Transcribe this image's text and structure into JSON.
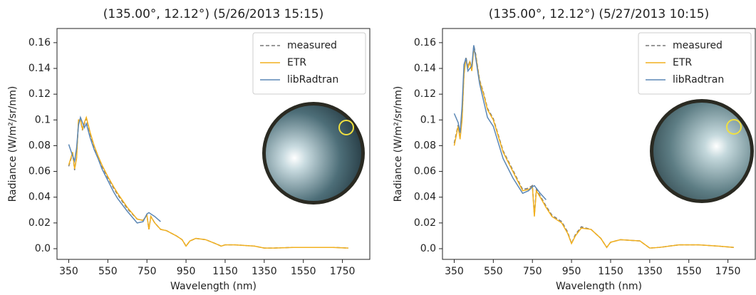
{
  "chart_data": [
    {
      "type": "line",
      "title": "(135.00°, 12.12°) (5/26/2013 15:15)",
      "x_label": "Wavelength (nm)",
      "y_label": "Radiance (W/m²/sr/nm)",
      "xlim": [
        290,
        1890
      ],
      "ylim": [
        -0.0083,
        0.171
      ],
      "xticks": [
        350,
        550,
        750,
        950,
        1150,
        1350,
        1550,
        1750
      ],
      "yticks": [
        {
          "value": 0,
          "label": "0.0"
        },
        0.02,
        0.04,
        0.06,
        0.08,
        0.1,
        0.12,
        0.14,
        0.16
      ],
      "legend": "upper right",
      "x": [
        350,
        370,
        380,
        390,
        400,
        410,
        420,
        430,
        440,
        460,
        480,
        500,
        520,
        550,
        580,
        600,
        650,
        700,
        730,
        750,
        760,
        770,
        790,
        820,
        850,
        900,
        930,
        950,
        970,
        1000,
        1050,
        1100,
        1130,
        1150,
        1200,
        1300,
        1350,
        1400,
        1500,
        1600,
        1700,
        1780
      ],
      "series": [
        {
          "name": "measured",
          "color": "#777777",
          "dashed": true,
          "values": [
            0.064,
            0.074,
            0.061,
            0.071,
            0.099,
            0.1,
            0.092,
            0.097,
            0.101,
            0.089,
            0.079,
            0.071,
            0.064,
            0.055,
            0.047,
            0.042,
            0.031,
            0.023,
            0.022,
            0.026,
            0.015,
            0.025,
            0.02,
            0.015,
            0.014,
            0.01,
            0.007,
            0.002,
            0.006,
            0.008,
            0.007,
            0.004,
            0.002,
            0.003,
            0.003,
            0.002,
            0.0005,
            0.0005,
            0.001,
            0.001,
            0.001,
            0.0005
          ]
        },
        {
          "name": "ETR",
          "color": "#f2b01e",
          "dashed": false,
          "values": [
            0.065,
            0.075,
            0.062,
            0.07,
            0.1,
            0.1,
            0.093,
            0.098,
            0.102,
            0.09,
            0.08,
            0.072,
            0.065,
            0.056,
            0.048,
            0.043,
            0.032,
            0.023,
            0.022,
            0.026,
            0.015,
            0.025,
            0.02,
            0.015,
            0.014,
            0.01,
            0.007,
            0.002,
            0.006,
            0.008,
            0.007,
            0.004,
            0.002,
            0.003,
            0.003,
            0.002,
            0.0005,
            0.0005,
            0.001,
            0.001,
            0.001,
            0.0005
          ]
        },
        {
          "name": "libRadtran",
          "color": "#5b87b5",
          "dashed": false,
          "values": [
            0.081,
            0.072,
            0.068,
            0.078,
            0.096,
            0.102,
            0.098,
            0.094,
            0.097,
            0.086,
            0.077,
            0.07,
            0.062,
            0.053,
            0.044,
            0.039,
            0.029,
            0.02,
            0.021,
            0.027,
            0.028,
            0.027,
            0.025,
            0.021,
            null,
            null,
            null,
            null,
            null,
            null,
            null,
            null,
            null,
            null,
            null,
            null,
            null,
            null,
            null,
            null,
            null,
            null
          ]
        }
      ]
    },
    {
      "type": "line",
      "title": "(135.00°, 12.12°) (5/27/2013 10:15)",
      "x_label": "Wavelength (nm)",
      "y_label": "Radiance (W/m²/sr/nm)",
      "xlim": [
        290,
        1890
      ],
      "ylim": [
        -0.0083,
        0.171
      ],
      "xticks": [
        350,
        550,
        750,
        950,
        1150,
        1350,
        1550,
        1750
      ],
      "yticks": [
        {
          "value": 0,
          "label": "0.0"
        },
        0.02,
        0.04,
        0.06,
        0.08,
        0.1,
        0.12,
        0.14,
        0.16
      ],
      "legend": "upper right",
      "x": [
        350,
        370,
        380,
        390,
        400,
        410,
        420,
        430,
        440,
        450,
        460,
        480,
        500,
        520,
        550,
        580,
        600,
        650,
        700,
        730,
        750,
        760,
        770,
        790,
        820,
        850,
        900,
        930,
        950,
        970,
        1000,
        1050,
        1100,
        1130,
        1150,
        1200,
        1300,
        1350,
        1400,
        1500,
        1600,
        1700,
        1780
      ],
      "series": [
        {
          "name": "measured",
          "color": "#777777",
          "dashed": true,
          "values": [
            0.082,
            0.096,
            0.086,
            0.101,
            0.136,
            0.149,
            0.141,
            0.146,
            0.139,
            0.158,
            0.151,
            0.131,
            0.121,
            0.109,
            0.101,
            0.086,
            0.076,
            0.061,
            0.046,
            0.047,
            0.049,
            0.026,
            0.046,
            0.041,
            0.033,
            0.026,
            0.021,
            0.013,
            0.004,
            0.011,
            0.017,
            0.015,
            0.008,
            0.001,
            0.005,
            0.007,
            0.006,
            0.0005,
            0.001,
            0.003,
            0.003,
            0.002,
            0.001
          ]
        },
        {
          "name": "ETR",
          "color": "#f2b01e",
          "dashed": false,
          "values": [
            0.08,
            0.095,
            0.085,
            0.1,
            0.135,
            0.148,
            0.14,
            0.145,
            0.138,
            0.155,
            0.15,
            0.13,
            0.12,
            0.108,
            0.1,
            0.085,
            0.075,
            0.06,
            0.045,
            0.046,
            0.048,
            0.025,
            0.045,
            0.04,
            0.032,
            0.025,
            0.02,
            0.012,
            0.004,
            0.01,
            0.016,
            0.015,
            0.008,
            0.001,
            0.005,
            0.007,
            0.006,
            0.0005,
            0.001,
            0.003,
            0.003,
            0.002,
            0.001
          ]
        },
        {
          "name": "libRadtran",
          "color": "#5b87b5",
          "dashed": false,
          "values": [
            0.105,
            0.098,
            0.09,
            0.11,
            0.143,
            0.148,
            0.138,
            0.14,
            0.142,
            0.158,
            0.148,
            0.128,
            0.115,
            0.102,
            0.095,
            0.08,
            0.07,
            0.055,
            0.043,
            0.045,
            0.048,
            0.049,
            0.047,
            0.043,
            0.038,
            null,
            null,
            null,
            null,
            null,
            null,
            null,
            null,
            null,
            null,
            null,
            null,
            null,
            null,
            null,
            null,
            null,
            null
          ]
        }
      ]
    }
  ]
}
